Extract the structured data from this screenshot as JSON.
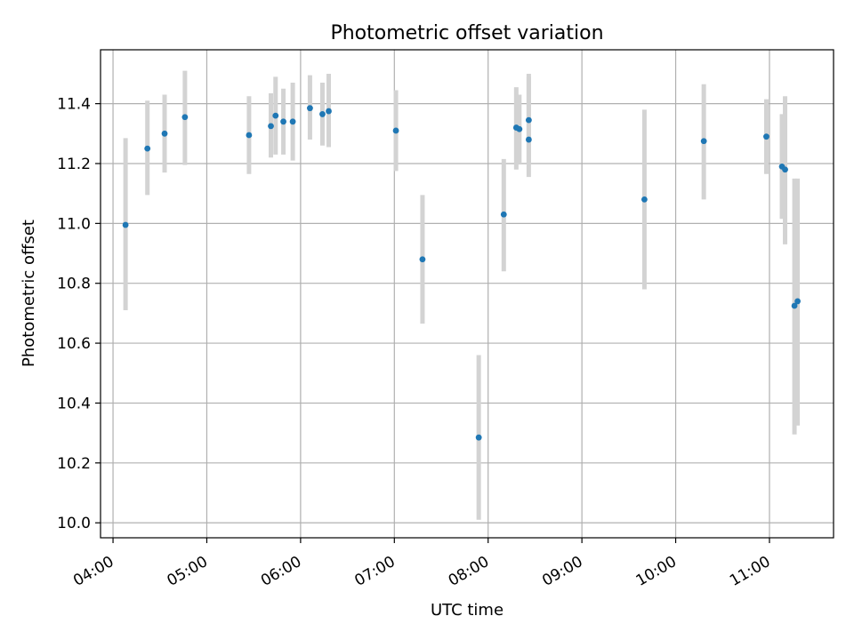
{
  "chart_data": {
    "type": "scatter",
    "title": "Photometric offset variation",
    "xlabel": "UTC time",
    "ylabel": "Photometric offset",
    "x_is_time": true,
    "xlim": [
      "03:52",
      "11:41"
    ],
    "ylim": [
      9.95,
      11.58
    ],
    "xticks": [
      "04:00",
      "05:00",
      "06:00",
      "07:00",
      "08:00",
      "09:00",
      "10:00",
      "11:00"
    ],
    "yticks": [
      10.0,
      10.2,
      10.4,
      10.6,
      10.8,
      11.0,
      11.2,
      11.4
    ],
    "grid": true,
    "legend": null,
    "colors": {
      "points": "#1f77b4",
      "errorbars": "#d3d3d3",
      "grid": "#b0b0b0"
    },
    "points": [
      {
        "t": "04:08",
        "y": 10.995,
        "lo": 10.71,
        "hi": 11.285
      },
      {
        "t": "04:22",
        "y": 11.25,
        "lo": 11.095,
        "hi": 11.41
      },
      {
        "t": "04:33",
        "y": 11.3,
        "lo": 11.17,
        "hi": 11.43
      },
      {
        "t": "04:46",
        "y": 11.355,
        "lo": 11.195,
        "hi": 11.51
      },
      {
        "t": "05:27",
        "y": 11.295,
        "lo": 11.165,
        "hi": 11.425
      },
      {
        "t": "05:41",
        "y": 11.325,
        "lo": 11.22,
        "hi": 11.435
      },
      {
        "t": "05:44",
        "y": 11.36,
        "lo": 11.23,
        "hi": 11.49
      },
      {
        "t": "05:49",
        "y": 11.34,
        "lo": 11.23,
        "hi": 11.45
      },
      {
        "t": "05:55",
        "y": 11.34,
        "lo": 11.21,
        "hi": 11.47
      },
      {
        "t": "06:06",
        "y": 11.385,
        "lo": 11.28,
        "hi": 11.495
      },
      {
        "t": "06:14",
        "y": 11.365,
        "lo": 11.26,
        "hi": 11.47
      },
      {
        "t": "06:18",
        "y": 11.375,
        "lo": 11.255,
        "hi": 11.5
      },
      {
        "t": "07:01",
        "y": 11.31,
        "lo": 11.175,
        "hi": 11.445
      },
      {
        "t": "07:18",
        "y": 10.88,
        "lo": 10.665,
        "hi": 11.095
      },
      {
        "t": "07:54",
        "y": 10.285,
        "lo": 10.01,
        "hi": 10.56
      },
      {
        "t": "08:10",
        "y": 11.03,
        "lo": 10.84,
        "hi": 11.215
      },
      {
        "t": "08:18",
        "y": 11.32,
        "lo": 11.18,
        "hi": 11.455
      },
      {
        "t": "08:20",
        "y": 11.315,
        "lo": 11.2,
        "hi": 11.43
      },
      {
        "t": "08:26",
        "y": 11.345,
        "lo": 11.2,
        "hi": 11.49
      },
      {
        "t": "08:26",
        "y": 11.28,
        "lo": 11.155,
        "hi": 11.5
      },
      {
        "t": "09:40",
        "y": 11.08,
        "lo": 10.78,
        "hi": 11.38
      },
      {
        "t": "10:18",
        "y": 11.275,
        "lo": 11.08,
        "hi": 11.465
      },
      {
        "t": "10:58",
        "y": 11.29,
        "lo": 11.165,
        "hi": 11.415
      },
      {
        "t": "11:08",
        "y": 11.19,
        "lo": 11.015,
        "hi": 11.365
      },
      {
        "t": "11:10",
        "y": 11.18,
        "lo": 10.93,
        "hi": 11.425
      },
      {
        "t": "11:16",
        "y": 10.725,
        "lo": 10.295,
        "hi": 11.15
      },
      {
        "t": "11:18",
        "y": 10.74,
        "lo": 10.325,
        "hi": 11.15
      }
    ]
  }
}
